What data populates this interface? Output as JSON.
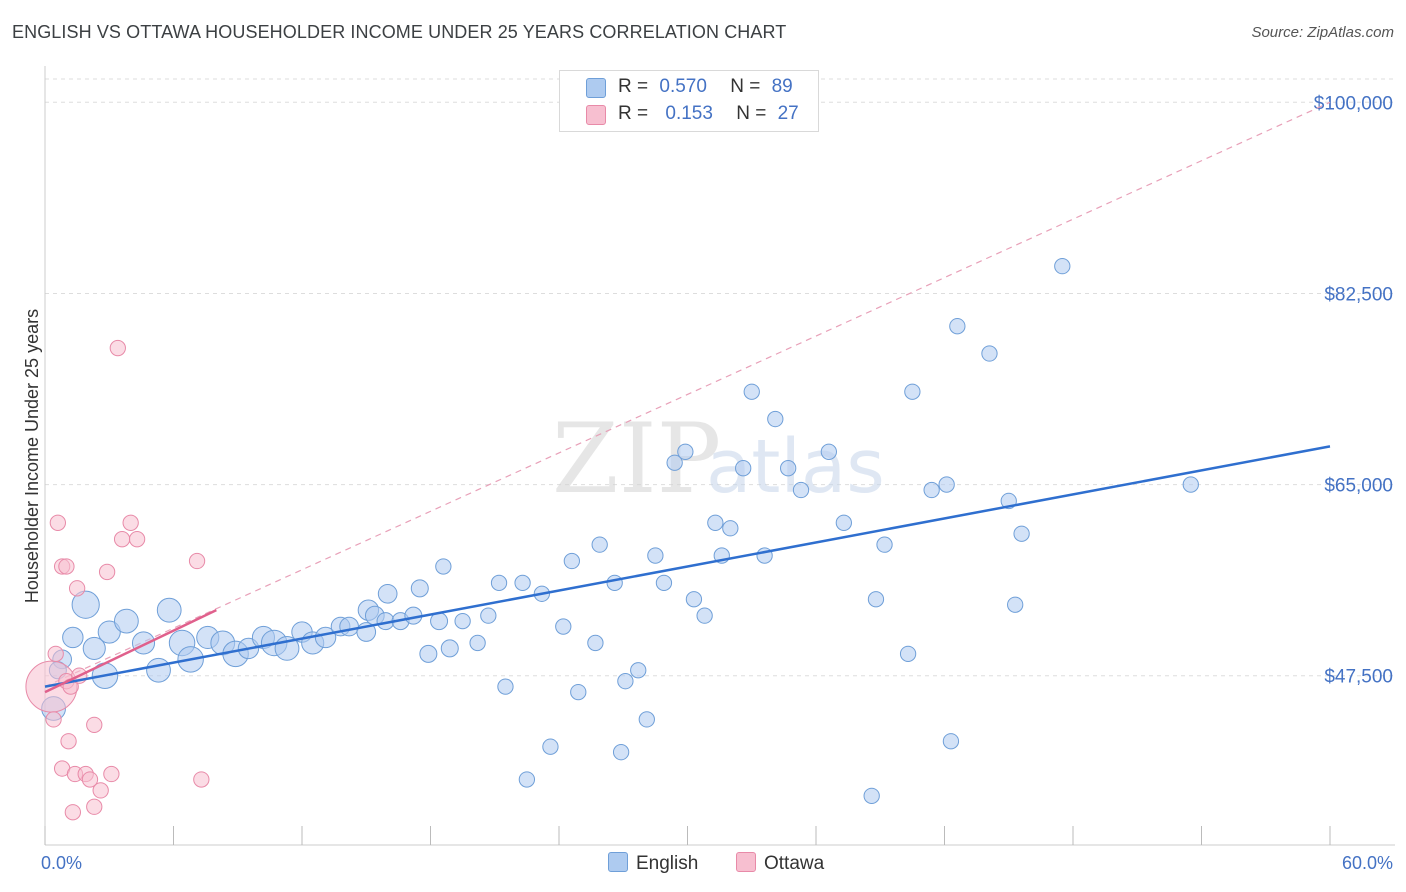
{
  "title": "ENGLISH VS OTTAWA HOUSEHOLDER INCOME UNDER 25 YEARS CORRELATION CHART",
  "source": "Source: ZipAtlas.com",
  "watermark": {
    "zip": "ZIP",
    "atlas": "atlas"
  },
  "legend": {
    "english": {
      "r_label": "R =",
      "r_value": "0.570",
      "n_label": "N =",
      "n_value": "89"
    },
    "ottawa": {
      "r_label": "R =",
      "r_value": "0.153",
      "n_label": "N =",
      "n_value": "27"
    }
  },
  "bottom_legend": {
    "english": "English",
    "ottawa": "Ottawa"
  },
  "colors": {
    "english_fill": "#aecbf0",
    "english_stroke": "#6f9fd8",
    "english_line": "#2f6fcf",
    "ottawa_fill": "#f7bfd0",
    "ottawa_stroke": "#e88aa8",
    "ottawa_line": "#e0608c",
    "axis_label": "#4472c4",
    "grid": "#dddddd"
  },
  "chart_data": {
    "type": "scatter",
    "title": "ENGLISH VS OTTAWA HOUSEHOLDER INCOME UNDER 25 YEARS CORRELATION CHART",
    "xlabel": "",
    "ylabel": "Householder Income Under 25 years",
    "x_tick_labels": [
      "0.0%",
      "60.0%"
    ],
    "y_tick_labels": [
      "$100,000",
      "$82,500",
      "$65,000",
      "$47,500"
    ],
    "y_ticks": [
      100000,
      82500,
      65000,
      47500
    ],
    "xlim": [
      0,
      60
    ],
    "ylim": [
      32000,
      102500
    ],
    "series": [
      {
        "name": "English",
        "r": 0.57,
        "n": 89,
        "trend": {
          "x": [
            0,
            60
          ],
          "y": [
            46500,
            68500
          ]
        },
        "points": [
          [
            0.4,
            44500,
            1.4
          ],
          [
            0.8,
            49000,
            1.1
          ],
          [
            1.3,
            51000,
            1.2
          ],
          [
            1.9,
            54000,
            1.6
          ],
          [
            2.3,
            50000,
            1.3
          ],
          [
            2.8,
            47500,
            1.5
          ],
          [
            3.0,
            51500,
            1.3
          ],
          [
            3.8,
            52500,
            1.4
          ],
          [
            4.6,
            50500,
            1.3
          ],
          [
            5.3,
            48000,
            1.4
          ],
          [
            5.8,
            53500,
            1.4
          ],
          [
            6.4,
            50500,
            1.5
          ],
          [
            6.8,
            49000,
            1.5
          ],
          [
            7.6,
            51000,
            1.3
          ],
          [
            8.3,
            50500,
            1.4
          ],
          [
            8.9,
            49500,
            1.5
          ],
          [
            9.5,
            50000,
            1.2
          ],
          [
            10.2,
            51000,
            1.3
          ],
          [
            10.7,
            50500,
            1.5
          ],
          [
            11.3,
            50000,
            1.4
          ],
          [
            12.0,
            51500,
            1.2
          ],
          [
            12.5,
            50500,
            1.3
          ],
          [
            13.1,
            51000,
            1.2
          ],
          [
            13.8,
            52000,
            1.1
          ],
          [
            14.2,
            52000,
            1.1
          ],
          [
            15.0,
            51500,
            1.1
          ],
          [
            15.1,
            53500,
            1.2
          ],
          [
            15.4,
            53000,
            1.1
          ],
          [
            15.9,
            52500,
            1.0
          ],
          [
            16.0,
            55000,
            1.1
          ],
          [
            16.6,
            52500,
            1.0
          ],
          [
            17.2,
            53000,
            1.0
          ],
          [
            17.5,
            55500,
            1.0
          ],
          [
            17.9,
            49500,
            1.0
          ],
          [
            18.4,
            52500,
            1.0
          ],
          [
            18.9,
            50000,
            1.0
          ],
          [
            18.6,
            57500,
            0.9
          ],
          [
            19.5,
            52500,
            0.9
          ],
          [
            20.2,
            50500,
            0.9
          ],
          [
            20.7,
            53000,
            0.9
          ],
          [
            21.2,
            56000,
            0.9
          ],
          [
            21.5,
            46500,
            0.9
          ],
          [
            22.3,
            56000,
            0.9
          ],
          [
            22.5,
            38000,
            0.9
          ],
          [
            23.2,
            55000,
            0.9
          ],
          [
            23.6,
            41000,
            0.9
          ],
          [
            24.2,
            52000,
            0.9
          ],
          [
            24.6,
            58000,
            0.9
          ],
          [
            24.9,
            46000,
            0.9
          ],
          [
            25.7,
            50500,
            0.9
          ],
          [
            25.9,
            59500,
            0.9
          ],
          [
            26.6,
            56000,
            0.9
          ],
          [
            26.9,
            40500,
            0.9
          ],
          [
            27.1,
            47000,
            0.9
          ],
          [
            27.7,
            48000,
            0.9
          ],
          [
            28.1,
            43500,
            0.9
          ],
          [
            28.5,
            58500,
            0.9
          ],
          [
            28.9,
            56000,
            0.9
          ],
          [
            29.4,
            67000,
            0.9
          ],
          [
            29.9,
            68000,
            0.9
          ],
          [
            30.3,
            54500,
            0.9
          ],
          [
            30.8,
            53000,
            0.9
          ],
          [
            31.3,
            61500,
            0.9
          ],
          [
            31.6,
            58500,
            0.9
          ],
          [
            32.0,
            61000,
            0.9
          ],
          [
            32.6,
            66500,
            0.9
          ],
          [
            33.0,
            73500,
            0.9
          ],
          [
            33.6,
            58500,
            0.9
          ],
          [
            34.1,
            71000,
            0.9
          ],
          [
            34.7,
            66500,
            0.9
          ],
          [
            35.3,
            64500,
            0.9
          ],
          [
            36.6,
            68000,
            0.9
          ],
          [
            37.3,
            61500,
            0.9
          ],
          [
            38.6,
            36500,
            0.9
          ],
          [
            38.8,
            54500,
            0.9
          ],
          [
            39.2,
            59500,
            0.9
          ],
          [
            40.3,
            49500,
            0.9
          ],
          [
            40.5,
            73500,
            0.9
          ],
          [
            41.4,
            64500,
            0.9
          ],
          [
            42.1,
            65000,
            0.9
          ],
          [
            42.3,
            41500,
            0.9
          ],
          [
            42.6,
            79500,
            0.9
          ],
          [
            44.1,
            77000,
            0.9
          ],
          [
            45.0,
            63500,
            0.9
          ],
          [
            45.3,
            54000,
            0.9
          ],
          [
            45.6,
            60500,
            0.9
          ],
          [
            47.5,
            85000,
            0.9
          ],
          [
            53.5,
            65000,
            0.9
          ],
          [
            0.6,
            48000,
            1.0
          ]
        ]
      },
      {
        "name": "Ottawa",
        "r": 0.153,
        "n": 27,
        "trend": {
          "x": [
            0,
            8
          ],
          "y": [
            46000,
            53500
          ]
        },
        "points": [
          [
            0.3,
            46500,
            3.0
          ],
          [
            0.4,
            43500,
            0.9
          ],
          [
            0.5,
            49500,
            0.9
          ],
          [
            0.6,
            61500,
            0.9
          ],
          [
            0.8,
            39000,
            0.9
          ],
          [
            0.8,
            57500,
            0.9
          ],
          [
            1.0,
            57500,
            0.9
          ],
          [
            1.0,
            47000,
            0.9
          ],
          [
            1.1,
            41500,
            0.9
          ],
          [
            1.2,
            46500,
            0.9
          ],
          [
            1.3,
            35000,
            0.9
          ],
          [
            1.4,
            38500,
            0.9
          ],
          [
            1.5,
            55500,
            0.9
          ],
          [
            1.6,
            47500,
            0.9
          ],
          [
            1.9,
            38500,
            0.9
          ],
          [
            2.1,
            38000,
            0.9
          ],
          [
            2.3,
            43000,
            0.9
          ],
          [
            2.3,
            35500,
            0.9
          ],
          [
            2.6,
            37000,
            0.9
          ],
          [
            2.9,
            57000,
            0.9
          ],
          [
            3.1,
            38500,
            0.9
          ],
          [
            3.4,
            77500,
            0.9
          ],
          [
            3.6,
            60000,
            0.9
          ],
          [
            4.0,
            61500,
            0.9
          ],
          [
            4.3,
            60000,
            0.9
          ],
          [
            7.1,
            58000,
            0.9
          ],
          [
            7.3,
            38000,
            0.9
          ]
        ]
      }
    ],
    "reference_line": {
      "style": "dashed",
      "x": [
        0,
        60
      ],
      "y": [
        46500,
        100000
      ]
    },
    "legend_position": "top-center"
  }
}
